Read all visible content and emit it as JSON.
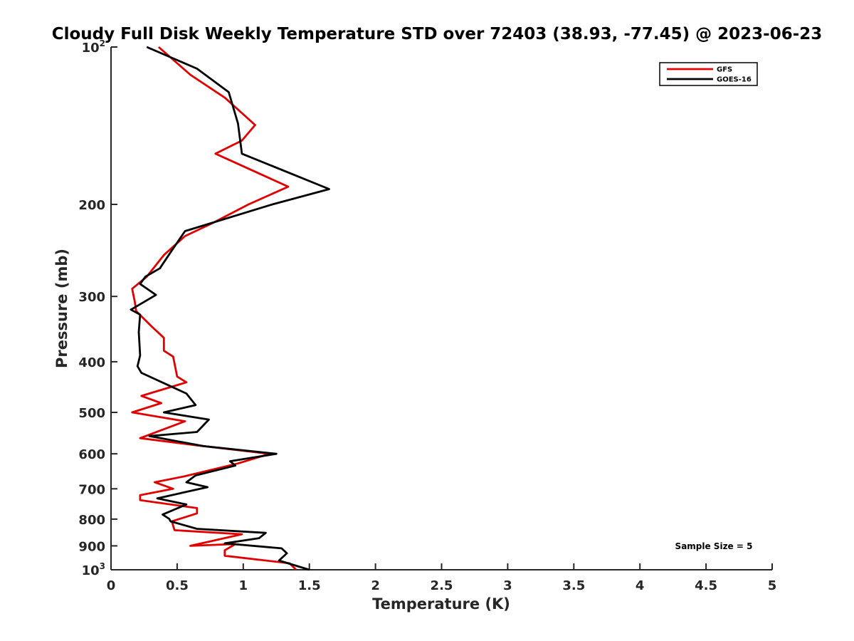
{
  "chart_data": {
    "type": "line",
    "title": "Cloudy Full Disk Weekly Temperature STD over 72403 (38.93, -77.45) @ 2023-06-23",
    "xlabel": "Temperature (K)",
    "ylabel": "Pressure (mb)",
    "xlim": [
      0,
      5
    ],
    "ylim": [
      100,
      1000
    ],
    "yscale": "log",
    "y_reversed": true,
    "grid": false,
    "legend_position": "top-right",
    "x_ticks": [
      "0",
      "0.5",
      "1",
      "1.5",
      "2",
      "2.5",
      "3",
      "3.5",
      "4",
      "4.5",
      "5"
    ],
    "x_tick_values": [
      0,
      0.5,
      1,
      1.5,
      2,
      2.5,
      3,
      3.5,
      4,
      4.5,
      5
    ],
    "y_tick_values": [
      100,
      200,
      300,
      400,
      500,
      600,
      700,
      800,
      900,
      1000
    ],
    "y_tick_labels": [
      {
        "base": "10",
        "sup": "2"
      },
      {
        "base": "200",
        "sup": ""
      },
      {
        "base": "300",
        "sup": ""
      },
      {
        "base": "400",
        "sup": ""
      },
      {
        "base": "500",
        "sup": ""
      },
      {
        "base": "600",
        "sup": ""
      },
      {
        "base": "700",
        "sup": ""
      },
      {
        "base": "800",
        "sup": ""
      },
      {
        "base": "900",
        "sup": ""
      },
      {
        "base": "10",
        "sup": "3"
      }
    ],
    "annotation": "Sample Size = 5",
    "series": [
      {
        "name": "GFS",
        "color": "#e00000",
        "points": [
          [
            0.36,
            100
          ],
          [
            0.6,
            113
          ],
          [
            0.86,
            125
          ],
          [
            1.09,
            141
          ],
          [
            0.99,
            151
          ],
          [
            0.79,
            160
          ],
          [
            1.34,
            185
          ],
          [
            1.04,
            200
          ],
          [
            0.77,
            217
          ],
          [
            0.56,
            230
          ],
          [
            0.4,
            250
          ],
          [
            0.27,
            275
          ],
          [
            0.16,
            290
          ],
          [
            0.18,
            307
          ],
          [
            0.19,
            320
          ],
          [
            0.31,
            343
          ],
          [
            0.4,
            360
          ],
          [
            0.4,
            381
          ],
          [
            0.47,
            391
          ],
          [
            0.5,
            427
          ],
          [
            0.57,
            438
          ],
          [
            0.23,
            465
          ],
          [
            0.38,
            480
          ],
          [
            0.16,
            500
          ],
          [
            0.56,
            520
          ],
          [
            0.22,
            560
          ],
          [
            0.65,
            578
          ],
          [
            1.2,
            600
          ],
          [
            0.96,
            626
          ],
          [
            0.55,
            663
          ],
          [
            0.33,
            680
          ],
          [
            0.47,
            700
          ],
          [
            0.22,
            720
          ],
          [
            0.22,
            736
          ],
          [
            0.65,
            762
          ],
          [
            0.65,
            780
          ],
          [
            0.46,
            808
          ],
          [
            0.48,
            840
          ],
          [
            0.99,
            855
          ],
          [
            0.6,
            900
          ],
          [
            0.94,
            893
          ],
          [
            0.86,
            918
          ],
          [
            0.86,
            940
          ],
          [
            1.35,
            972
          ],
          [
            1.4,
            1000
          ]
        ]
      },
      {
        "name": "GOES-16",
        "color": "#000000",
        "points": [
          [
            0.27,
            100
          ],
          [
            0.65,
            110
          ],
          [
            0.89,
            122
          ],
          [
            0.96,
            140
          ],
          [
            0.99,
            160
          ],
          [
            1.65,
            187
          ],
          [
            1.22,
            200
          ],
          [
            0.56,
            225
          ],
          [
            0.46,
            245
          ],
          [
            0.37,
            265
          ],
          [
            0.26,
            275
          ],
          [
            0.22,
            284
          ],
          [
            0.34,
            298
          ],
          [
            0.15,
            318
          ],
          [
            0.22,
            325
          ],
          [
            0.21,
            351
          ],
          [
            0.22,
            389
          ],
          [
            0.2,
            408
          ],
          [
            0.23,
            420
          ],
          [
            0.57,
            460
          ],
          [
            0.64,
            484
          ],
          [
            0.4,
            500
          ],
          [
            0.74,
            516
          ],
          [
            0.65,
            545
          ],
          [
            0.29,
            555
          ],
          [
            0.7,
            580
          ],
          [
            1.25,
            600
          ],
          [
            0.9,
            620
          ],
          [
            0.94,
            632
          ],
          [
            0.64,
            660
          ],
          [
            0.57,
            680
          ],
          [
            0.73,
            695
          ],
          [
            0.35,
            730
          ],
          [
            0.57,
            750
          ],
          [
            0.39,
            784
          ],
          [
            0.44,
            799
          ],
          [
            0.45,
            808
          ],
          [
            0.65,
            835
          ],
          [
            1.17,
            850
          ],
          [
            1.12,
            870
          ],
          [
            0.86,
            890
          ],
          [
            1.29,
            910
          ],
          [
            1.33,
            930
          ],
          [
            1.27,
            960
          ],
          [
            1.5,
            1000
          ]
        ]
      }
    ]
  }
}
